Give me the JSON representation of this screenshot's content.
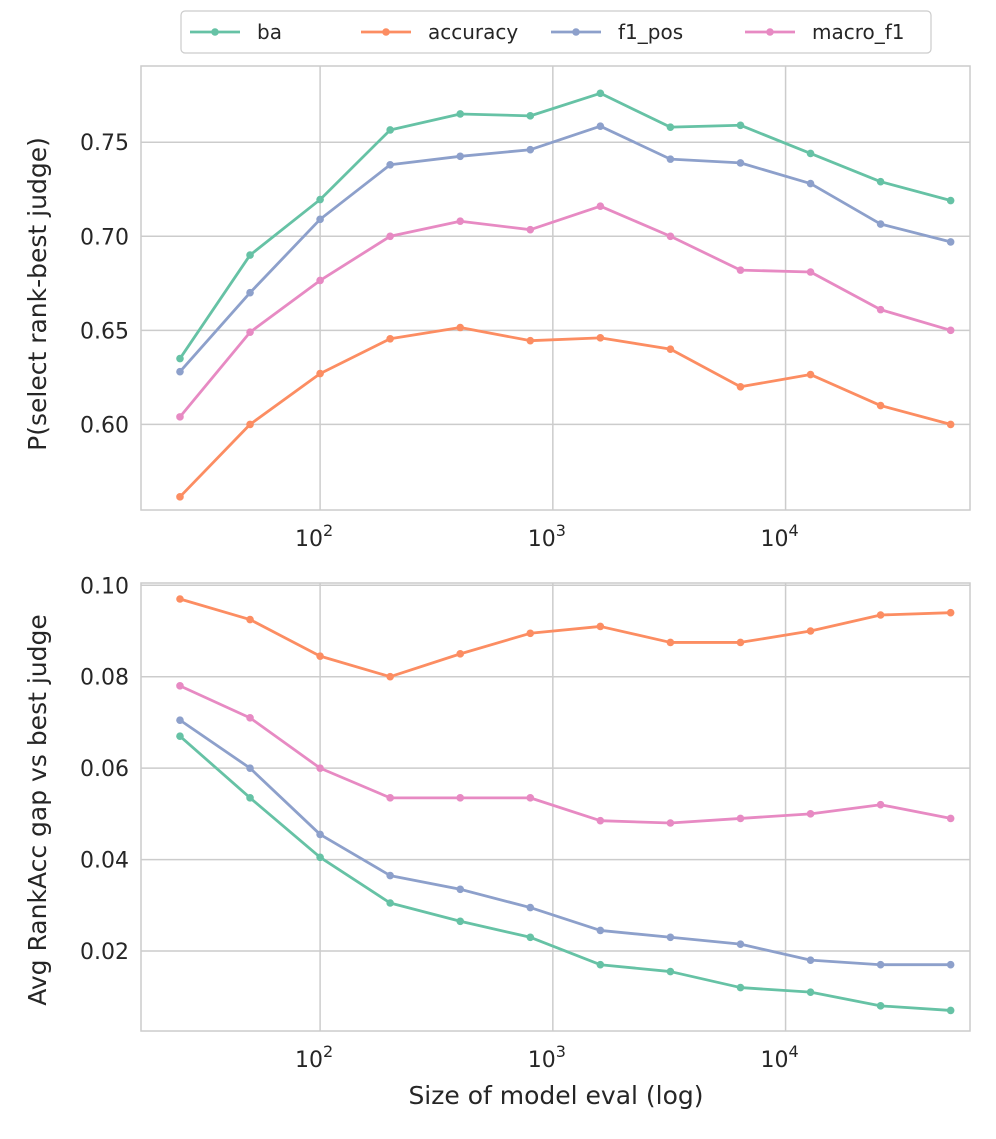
{
  "colors": {
    "ba": "#66c2a5",
    "accuracy": "#fc8d62",
    "f1_pos": "#8da0cb",
    "macro_f1": "#e78ac3"
  },
  "legend": {
    "items": [
      "ba",
      "accuracy",
      "f1_pos",
      "macro_f1"
    ]
  },
  "chart_data": [
    {
      "type": "line",
      "title": "",
      "xlabel": "",
      "ylabel": "P(select rank-best judge)",
      "xscale": "log",
      "xlim": [
        17,
        62000
      ],
      "ylim": [
        0.5545,
        0.7905
      ],
      "grid": true,
      "yticks": [
        0.6,
        0.65,
        0.7,
        0.75
      ],
      "ytick_labels": [
        "0.60",
        "0.65",
        "0.70",
        "0.75"
      ],
      "xticks": [
        100,
        1000,
        10000
      ],
      "xtick_labels": [
        {
          "base": "10",
          "exp": "2"
        },
        {
          "base": "10",
          "exp": "3"
        },
        {
          "base": "10",
          "exp": "4"
        }
      ],
      "x": [
        25,
        50,
        100,
        200,
        400,
        800,
        1600,
        3200,
        6400,
        12800,
        25600,
        51200
      ],
      "series": [
        {
          "name": "ba",
          "values": [
            0.635,
            0.69,
            0.7195,
            0.7565,
            0.765,
            0.764,
            0.776,
            0.758,
            0.759,
            0.744,
            0.729,
            0.719
          ]
        },
        {
          "name": "accuracy",
          "values": [
            0.5615,
            0.6,
            0.627,
            0.6455,
            0.6515,
            0.6445,
            0.646,
            0.64,
            0.62,
            0.6265,
            0.61,
            0.6
          ]
        },
        {
          "name": "f1_pos",
          "values": [
            0.628,
            0.67,
            0.709,
            0.738,
            0.7425,
            0.746,
            0.7585,
            0.741,
            0.739,
            0.728,
            0.7065,
            0.697
          ]
        },
        {
          "name": "macro_f1",
          "values": [
            0.604,
            0.649,
            0.6765,
            0.7,
            0.708,
            0.7035,
            0.716,
            0.7,
            0.682,
            0.681,
            0.661,
            0.65
          ]
        }
      ]
    },
    {
      "type": "line",
      "title": "",
      "xlabel": "Size of model eval (log)",
      "ylabel": "Avg RankAcc gap vs best judge",
      "xscale": "log",
      "xlim": [
        17,
        62000
      ],
      "ylim": [
        0.0025,
        0.1005
      ],
      "grid": true,
      "yticks": [
        0.02,
        0.04,
        0.06,
        0.08,
        0.1
      ],
      "ytick_labels": [
        "0.02",
        "0.04",
        "0.06",
        "0.08",
        "0.10"
      ],
      "xticks": [
        100,
        1000,
        10000
      ],
      "xtick_labels": [
        {
          "base": "10",
          "exp": "2"
        },
        {
          "base": "10",
          "exp": "3"
        },
        {
          "base": "10",
          "exp": "4"
        }
      ],
      "x": [
        25,
        50,
        100,
        200,
        400,
        800,
        1600,
        3200,
        6400,
        12800,
        25600,
        51200
      ],
      "series": [
        {
          "name": "ba",
          "values": [
            0.067,
            0.0535,
            0.0405,
            0.0305,
            0.0265,
            0.023,
            0.017,
            0.0155,
            0.012,
            0.011,
            0.008,
            0.007
          ]
        },
        {
          "name": "accuracy",
          "values": [
            0.097,
            0.0925,
            0.0845,
            0.08,
            0.085,
            0.0895,
            0.091,
            0.0875,
            0.0875,
            0.09,
            0.0935,
            0.094
          ]
        },
        {
          "name": "f1_pos",
          "values": [
            0.0705,
            0.06,
            0.0455,
            0.0365,
            0.0335,
            0.0295,
            0.0245,
            0.023,
            0.0215,
            0.018,
            0.017,
            0.017
          ]
        },
        {
          "name": "macro_f1",
          "values": [
            0.078,
            0.071,
            0.06,
            0.0535,
            0.0535,
            0.0535,
            0.0485,
            0.048,
            0.049,
            0.05,
            0.052,
            0.049
          ]
        }
      ]
    }
  ]
}
